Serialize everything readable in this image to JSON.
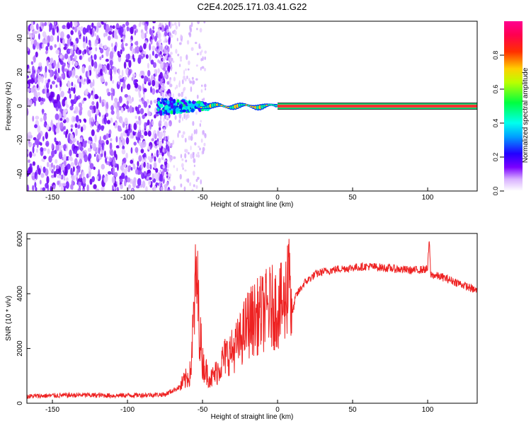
{
  "title": "C2E4.2025.171.03.41.G22",
  "chart_data": [
    {
      "type": "heatmap",
      "xlabel": "Height of straight line (km)",
      "ylabel": "Frequency (Hz)",
      "xlim": [
        -167,
        133
      ],
      "ylim": [
        -50,
        50
      ],
      "x_ticks": [
        -150,
        -100,
        -50,
        0,
        50,
        100
      ],
      "y_ticks": [
        -40,
        -20,
        0,
        20,
        40
      ],
      "grid": false,
      "colorbar": {
        "label": "Normalized spectral amplitude",
        "range": [
          0,
          1
        ],
        "ticks": [
          "0.0",
          "0.2",
          "0.4",
          "0.6",
          "0.8"
        ],
        "colormap": [
          "#ffffff",
          "#7b00ff",
          "#0000ff",
          "#00ffff",
          "#00ff00",
          "#ffff00",
          "#ff0000",
          "#ff00a0"
        ]
      },
      "description_features": {
        "noise_region_x": [
          -167,
          -75
        ],
        "signal_track_x": [
          0,
          133
        ],
        "signal_frequency_hz": 0
      }
    },
    {
      "type": "line",
      "xlabel": "Height of straight line (km)",
      "ylabel": "SNR (10 * v/v)",
      "xlim": [
        -167,
        133
      ],
      "ylim": [
        0,
        6200
      ],
      "x_ticks": [
        -150,
        -100,
        -50,
        0,
        50,
        100
      ],
      "y_ticks": [
        0,
        2000,
        4000,
        6000
      ],
      "grid": false,
      "series": [
        {
          "color": "#ee2222",
          "x": [
            -167,
            -150,
            -130,
            -110,
            -90,
            -75,
            -65,
            -58,
            -55,
            -54,
            -52,
            -50,
            -47,
            -44,
            -40,
            -35,
            -30,
            -25,
            -20,
            -15,
            -10,
            -5,
            0,
            5,
            7,
            8,
            9,
            12,
            18,
            25,
            30,
            40,
            50,
            60,
            70,
            80,
            90,
            100,
            101,
            102,
            110,
            120,
            133
          ],
          "y": [
            250,
            280,
            300,
            280,
            300,
            320,
            600,
            1100,
            3900,
            4700,
            2800,
            1500,
            1100,
            900,
            1200,
            1700,
            1900,
            2300,
            2900,
            3100,
            3300,
            3500,
            3500,
            3600,
            4700,
            6200,
            3000,
            3900,
            4400,
            4700,
            4800,
            4900,
            4950,
            5000,
            4950,
            4900,
            4850,
            4900,
            6000,
            4700,
            4600,
            4400,
            4100
          ]
        }
      ]
    }
  ]
}
